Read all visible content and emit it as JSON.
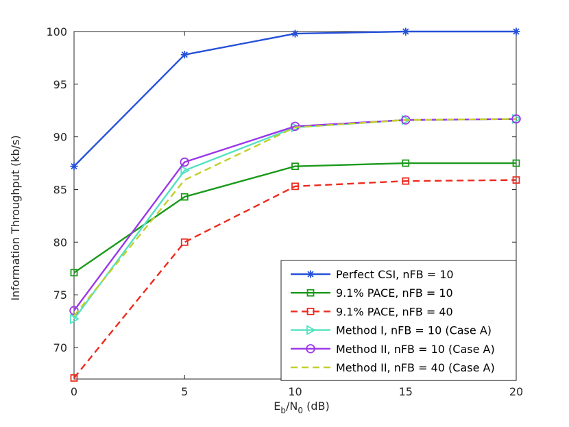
{
  "chart_data": {
    "type": "line",
    "title": "",
    "xlabel": {
      "main": "E",
      "sub1": "b",
      "mid": "/N",
      "sub2": "0",
      "tail": " (dB)"
    },
    "ylabel": "Information Throughput (kb/s)",
    "xlim": [
      0,
      20
    ],
    "ylim": [
      67,
      100
    ],
    "xticks": [
      0,
      5,
      10,
      15,
      20
    ],
    "yticks": [
      70,
      75,
      80,
      85,
      90,
      95,
      100
    ],
    "grid": false,
    "legend_position": "bottom-right",
    "x": [
      0,
      5,
      10,
      15,
      20
    ],
    "series": [
      {
        "name": "Perfect CSI, nFB = 10",
        "values": [
          87.2,
          97.8,
          99.8,
          100.0,
          100.0
        ],
        "color": "#2550d8",
        "dash": "solid",
        "marker": "star"
      },
      {
        "name": "9.1% PACE, nFB = 10",
        "values": [
          77.1,
          84.3,
          87.2,
          87.5,
          87.5
        ],
        "color": "#1a9a1a",
        "dash": "solid",
        "marker": "square"
      },
      {
        "name": "9.1% PACE, nFB = 40",
        "values": [
          67.1,
          80.0,
          85.3,
          85.8,
          85.9
        ],
        "color": "#ee2a1e",
        "dash": "dashed",
        "marker": "square"
      },
      {
        "name": "Method I, nFB = 10 (Case A)",
        "values": [
          72.7,
          86.8,
          90.9,
          91.6,
          91.7
        ],
        "color": "#52e2c2",
        "dash": "solid",
        "marker": "triangle-right"
      },
      {
        "name": "Method II, nFB = 10 (Case A)",
        "values": [
          73.5,
          87.6,
          91.0,
          91.6,
          91.7
        ],
        "color": "#9b36e8",
        "dash": "solid",
        "marker": "circle"
      },
      {
        "name": "Method II, nFB = 40 (Case A)",
        "values": [
          73.0,
          85.9,
          90.9,
          91.6,
          91.7
        ],
        "color": "#c2cf2a",
        "dash": "dashed",
        "marker": "none"
      }
    ]
  }
}
